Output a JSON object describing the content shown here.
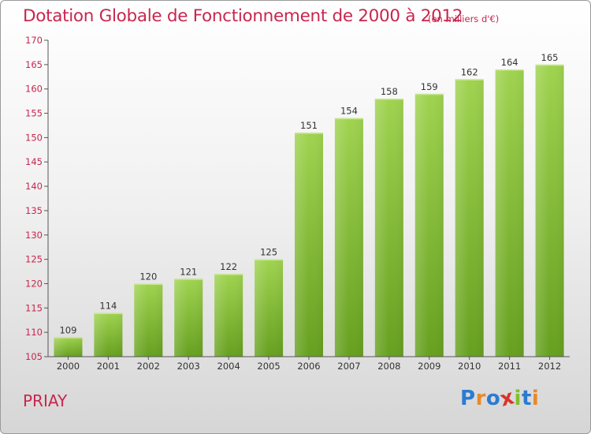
{
  "chart_data": {
    "type": "bar",
    "title": "Dotation Globale de Fonctionnement de 2000 à 2012",
    "subtitle": "(en milliers d'€)",
    "categories": [
      "2000",
      "2001",
      "2002",
      "2003",
      "2004",
      "2005",
      "2006",
      "2007",
      "2008",
      "2009",
      "2010",
      "2011",
      "2012"
    ],
    "values": [
      109,
      114,
      120,
      121,
      122,
      125,
      151,
      154,
      158,
      159,
      162,
      164,
      165
    ],
    "ylim": [
      105,
      170
    ],
    "yticks": [
      105,
      110,
      115,
      120,
      125,
      130,
      135,
      140,
      145,
      150,
      155,
      160,
      165,
      170
    ],
    "grid": false,
    "bar_color": "#7fbf2e",
    "axis_label_color": "#c8264e"
  },
  "footer": {
    "commune": "PRIAY",
    "brand_letters": [
      "P",
      "r",
      "o",
      "x",
      "i",
      "t",
      "i"
    ],
    "brand_colors": [
      "#2b7bd1",
      "#e8892a",
      "#2b7bd1",
      "#d9342b",
      "#7fbf2e",
      "#2b7bd1",
      "#e8892a"
    ]
  }
}
